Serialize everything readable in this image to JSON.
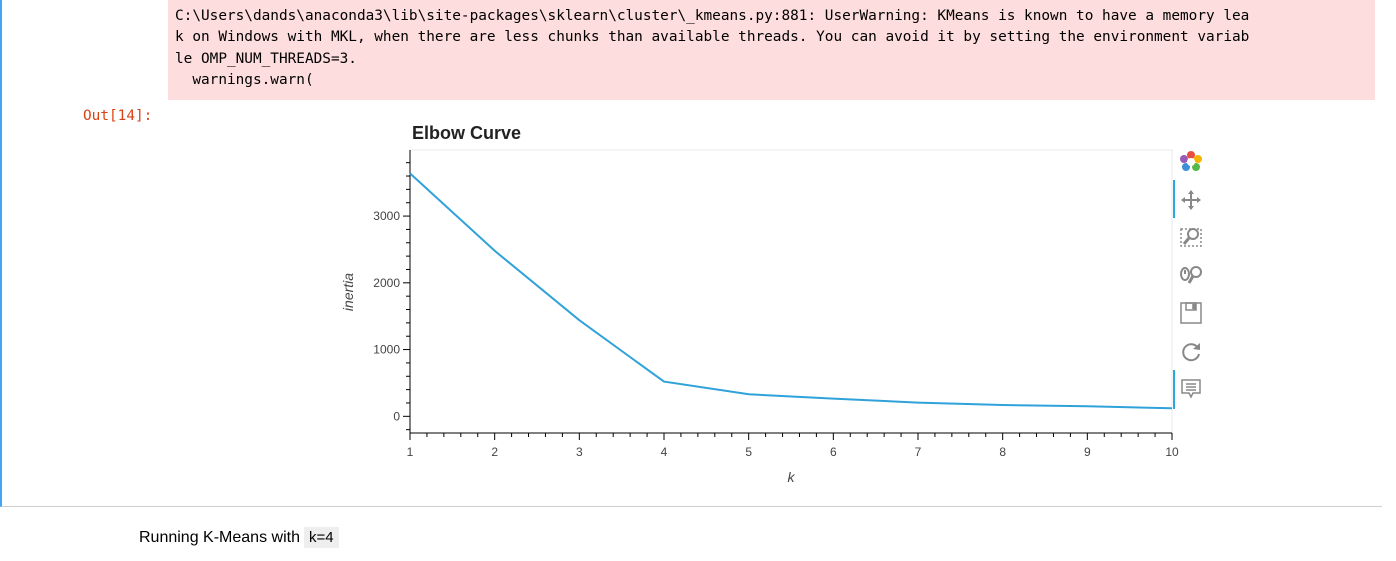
{
  "warning": {
    "lines": [
      "C:\\Users\\dands\\anaconda3\\lib\\site-packages\\sklearn\\cluster\\_kmeans.py:881: UserWarning: KMeans is known to have a memory lea",
      "k on Windows with MKL, when there are less chunks than available threads. You can avoid it by setting the environment variab",
      "le OMP_NUM_THREADS=3.",
      "  warnings.warn("
    ]
  },
  "out_prompt": "Out[14]:",
  "chart_data": {
    "type": "line",
    "title": "Elbow Curve",
    "xlabel": "k",
    "ylabel": "inertia",
    "x": [
      1,
      2,
      3,
      4,
      5,
      6,
      7,
      8,
      9,
      10
    ],
    "y": [
      3640,
      2480,
      1440,
      520,
      330,
      265,
      205,
      170,
      150,
      120
    ],
    "xlim": [
      1,
      10
    ],
    "ylim": [
      -250,
      3990
    ],
    "xticks": [
      "1",
      "2",
      "3",
      "4",
      "5",
      "6",
      "7",
      "8",
      "9",
      "10"
    ],
    "yticks": [
      "0",
      "1000",
      "2000",
      "3000"
    ],
    "ytick_values": [
      0,
      1000,
      2000,
      3000
    ],
    "line_color": "#30a2da",
    "grid": false
  },
  "toolbar": {
    "icons": [
      "bokeh-logo-icon",
      "pan-icon",
      "box-zoom-icon",
      "wheel-zoom-icon",
      "save-icon",
      "reset-icon",
      "hover-icon"
    ]
  },
  "below": {
    "text": "Running K-Means with",
    "code": "k=4"
  }
}
